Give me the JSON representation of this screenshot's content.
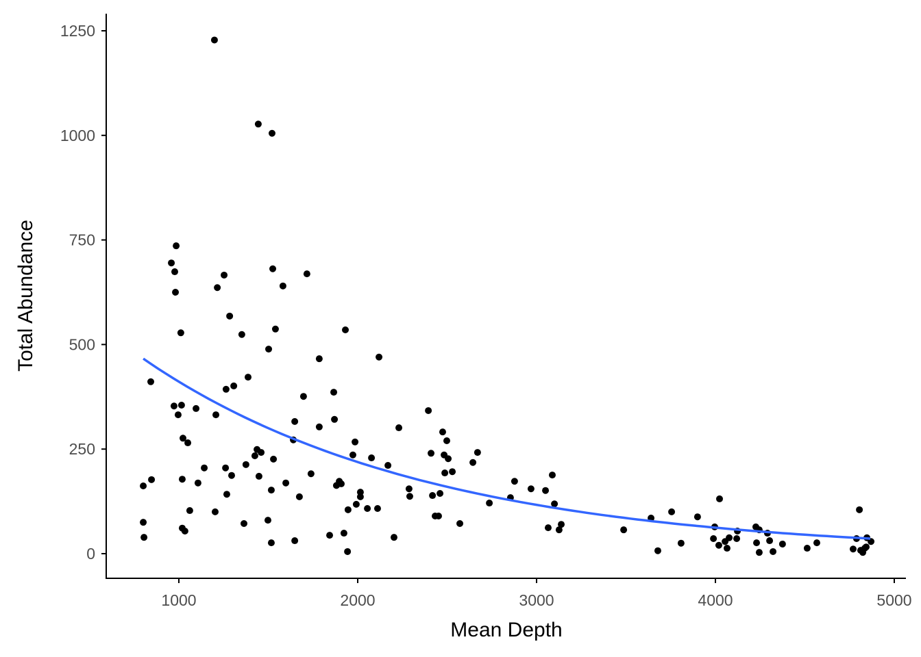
{
  "chart_data": {
    "type": "scatter",
    "title": "",
    "xlabel": "Mean Depth",
    "ylabel": "Total Abundance",
    "xlim": [
      600,
      5070
    ],
    "ylim": [
      -60,
      1290
    ],
    "xticks": [
      1000,
      2000,
      3000,
      4000,
      5000
    ],
    "yticks": [
      0,
      250,
      500,
      750,
      1000,
      1250
    ],
    "grid": false,
    "legend": "none",
    "colors": {
      "points": "#000000",
      "fit": "#3366FF",
      "axis": "#000000"
    },
    "points": [
      [
        1199,
        1228
      ],
      [
        1444,
        1027
      ],
      [
        1521,
        1005
      ],
      [
        801,
        75
      ],
      [
        805,
        39
      ],
      [
        801,
        162
      ],
      [
        847,
        177
      ],
      [
        843,
        411
      ],
      [
        958,
        695
      ],
      [
        985,
        736
      ],
      [
        977,
        674
      ],
      [
        981,
        625
      ],
      [
        1011,
        528
      ],
      [
        973,
        353
      ],
      [
        996,
        332
      ],
      [
        1015,
        355
      ],
      [
        1023,
        276
      ],
      [
        1050,
        265
      ],
      [
        1019,
        178
      ],
      [
        1019,
        61
      ],
      [
        1034,
        54
      ],
      [
        1061,
        103
      ],
      [
        1096,
        347
      ],
      [
        1107,
        169
      ],
      [
        1142,
        205
      ],
      [
        1215,
        636
      ],
      [
        1253,
        666
      ],
      [
        1207,
        332
      ],
      [
        1203,
        100
      ],
      [
        1264,
        393
      ],
      [
        1284,
        568
      ],
      [
        1307,
        401
      ],
      [
        1261,
        205
      ],
      [
        1268,
        142
      ],
      [
        1295,
        187
      ],
      [
        1352,
        524
      ],
      [
        1387,
        422
      ],
      [
        1375,
        213
      ],
      [
        1364,
        72
      ],
      [
        1437,
        249
      ],
      [
        1425,
        234
      ],
      [
        1460,
        242
      ],
      [
        1448,
        185
      ],
      [
        1525,
        681
      ],
      [
        1540,
        537
      ],
      [
        1502,
        489
      ],
      [
        1529,
        226
      ],
      [
        1517,
        152
      ],
      [
        1498,
        80
      ],
      [
        1517,
        26
      ],
      [
        1582,
        640
      ],
      [
        1598,
        169
      ],
      [
        1648,
        316
      ],
      [
        1640,
        272
      ],
      [
        1648,
        31
      ],
      [
        1674,
        136
      ],
      [
        1716,
        669
      ],
      [
        1697,
        376
      ],
      [
        1739,
        191
      ],
      [
        1785,
        466
      ],
      [
        1785,
        303
      ],
      [
        1843,
        44
      ],
      [
        1866,
        386
      ],
      [
        1870,
        321
      ],
      [
        1897,
        173
      ],
      [
        1881,
        163
      ],
      [
        1908,
        167
      ],
      [
        1931,
        535
      ],
      [
        1923,
        49
      ],
      [
        1943,
        5
      ],
      [
        1985,
        267
      ],
      [
        1973,
        236
      ],
      [
        1946,
        105
      ],
      [
        1992,
        118
      ],
      [
        2015,
        147
      ],
      [
        2015,
        136
      ],
      [
        2054,
        108
      ],
      [
        2111,
        108
      ],
      [
        2077,
        229
      ],
      [
        2119,
        470
      ],
      [
        2169,
        211
      ],
      [
        2203,
        39
      ],
      [
        2230,
        301
      ],
      [
        2287,
        155
      ],
      [
        2291,
        137
      ],
      [
        2395,
        342
      ],
      [
        2410,
        240
      ],
      [
        2418,
        139
      ],
      [
        2433,
        90
      ],
      [
        2452,
        90
      ],
      [
        2460,
        144
      ],
      [
        2475,
        291
      ],
      [
        2483,
        236
      ],
      [
        2498,
        270
      ],
      [
        2506,
        227
      ],
      [
        2487,
        193
      ],
      [
        2529,
        196
      ],
      [
        2571,
        72
      ],
      [
        2644,
        218
      ],
      [
        2670,
        242
      ],
      [
        2736,
        121
      ],
      [
        2854,
        134
      ],
      [
        2877,
        173
      ],
      [
        2969,
        155
      ],
      [
        3050,
        151
      ],
      [
        3088,
        188
      ],
      [
        3100,
        119
      ],
      [
        3065,
        62
      ],
      [
        3126,
        57
      ],
      [
        3138,
        70
      ],
      [
        3487,
        57
      ],
      [
        3640,
        85
      ],
      [
        3678,
        7
      ],
      [
        3755,
        100
      ],
      [
        3808,
        25
      ],
      [
        3900,
        88
      ],
      [
        3996,
        64
      ],
      [
        4023,
        131
      ],
      [
        3989,
        36
      ],
      [
        4019,
        20
      ],
      [
        4054,
        29
      ],
      [
        4065,
        13
      ],
      [
        4077,
        38
      ],
      [
        4123,
        54
      ],
      [
        4119,
        36
      ],
      [
        4226,
        64
      ],
      [
        4245,
        57
      ],
      [
        4230,
        26
      ],
      [
        4245,
        3
      ],
      [
        4291,
        49
      ],
      [
        4303,
        31
      ],
      [
        4322,
        5
      ],
      [
        4375,
        23
      ],
      [
        4513,
        13
      ],
      [
        4567,
        26
      ],
      [
        4770,
        11
      ],
      [
        4789,
        36
      ],
      [
        4805,
        105
      ],
      [
        4812,
        8
      ],
      [
        4824,
        3
      ],
      [
        4835,
        13
      ],
      [
        4847,
        38
      ],
      [
        4843,
        16
      ],
      [
        4870,
        29
      ]
    ],
    "fit": {
      "model": "exponential",
      "a": 772,
      "b": -0.00063,
      "x_range": [
        801,
        4866
      ]
    }
  }
}
